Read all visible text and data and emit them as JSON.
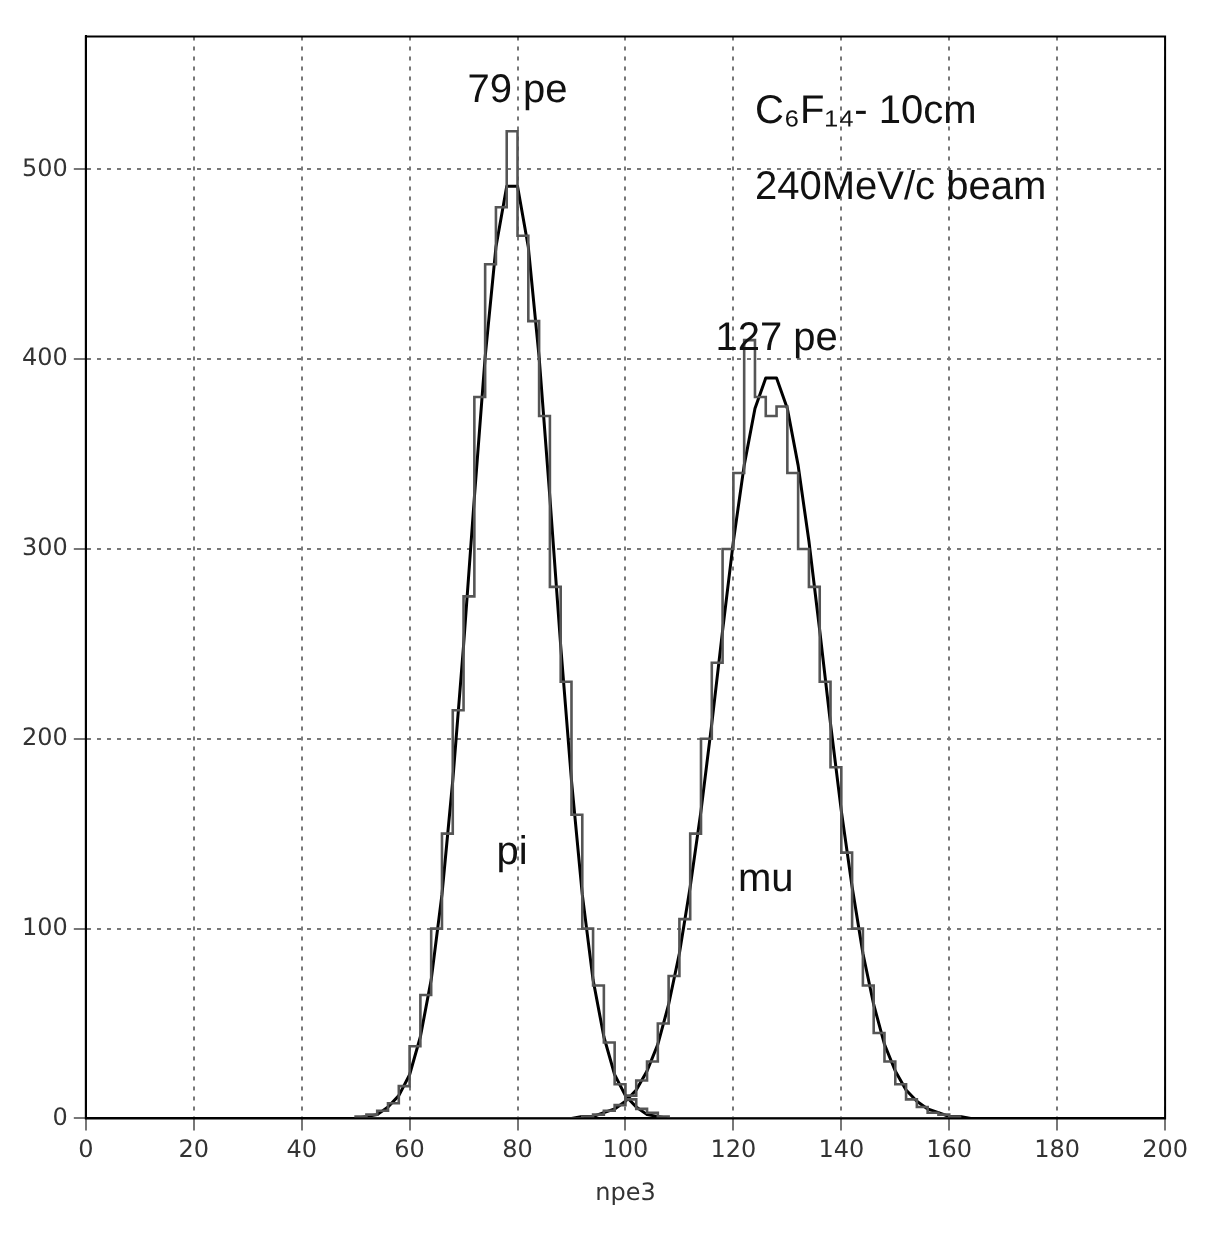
{
  "chart_data": {
    "type": "histogram",
    "xlabel": "npe3",
    "xlim": [
      0,
      200
    ],
    "xticks": [
      0,
      20,
      40,
      60,
      80,
      100,
      120,
      140,
      160,
      180,
      200
    ],
    "ylim": [
      0,
      570
    ],
    "yticks": [
      0,
      100,
      200,
      300,
      400,
      500
    ],
    "grid": true,
    "legend": false,
    "bins": [
      50,
      52,
      54,
      56,
      58,
      60,
      62,
      64,
      66,
      68,
      70,
      72,
      74,
      76,
      78,
      80,
      82,
      84,
      86,
      88,
      90,
      92,
      94,
      96,
      98,
      100,
      102,
      104,
      106,
      108,
      110,
      112,
      114,
      116,
      118,
      120,
      122,
      124,
      126,
      128,
      130,
      132,
      134,
      136,
      138,
      140,
      142,
      144,
      146,
      148,
      150,
      152,
      154,
      156,
      158,
      160,
      162
    ],
    "series": [
      {
        "color": "#555555",
        "values": [
          1,
          2,
          4,
          8,
          17,
          38,
          65,
          100,
          150,
          215,
          275,
          380,
          450,
          480,
          520,
          465,
          420,
          370,
          280,
          230,
          160,
          100,
          70,
          40,
          18,
          10,
          5,
          3,
          1,
          0,
          0,
          0,
          0,
          0,
          0,
          0,
          0,
          0,
          0,
          0,
          0,
          0,
          0,
          0,
          0,
          0,
          0,
          0,
          0,
          0,
          0,
          0,
          0,
          0,
          0,
          0
        ]
      },
      {
        "color": "#555555",
        "values": [
          0,
          0,
          0,
          0,
          0,
          0,
          0,
          0,
          0,
          0,
          0,
          0,
          0,
          0,
          0,
          0,
          0,
          0,
          0,
          0,
          0,
          1,
          2,
          4,
          7,
          12,
          20,
          30,
          50,
          75,
          105,
          150,
          200,
          240,
          300,
          340,
          410,
          380,
          370,
          375,
          340,
          300,
          280,
          230,
          185,
          140,
          100,
          70,
          45,
          30,
          18,
          10,
          6,
          3,
          2,
          1
        ]
      },
      {
        "type": "line",
        "color": "#000000",
        "x": [
          50,
          52,
          54,
          56,
          58,
          60,
          62,
          64,
          66,
          68,
          70,
          72,
          74,
          76,
          78,
          80,
          82,
          84,
          86,
          88,
          90,
          92,
          94,
          96,
          98,
          100,
          102,
          104,
          106,
          108,
          110
        ],
        "values": [
          0,
          1,
          2,
          6,
          12,
          23,
          43,
          73,
          118,
          178,
          249,
          327,
          401,
          459,
          491,
          491,
          459,
          401,
          327,
          249,
          178,
          118,
          73,
          43,
          23,
          12,
          6,
          2,
          1,
          0,
          0
        ]
      },
      {
        "type": "line",
        "color": "#000000",
        "x": [
          90,
          92,
          94,
          96,
          98,
          100,
          102,
          104,
          106,
          108,
          110,
          112,
          114,
          116,
          118,
          120,
          122,
          124,
          126,
          128,
          130,
          132,
          134,
          136,
          138,
          140,
          142,
          144,
          146,
          148,
          150,
          152,
          154,
          156,
          158,
          160,
          162,
          164
        ],
        "values": [
          0,
          1,
          1,
          3,
          5,
          9,
          15,
          25,
          39,
          60,
          87,
          122,
          162,
          208,
          257,
          304,
          344,
          374,
          390,
          390,
          374,
          344,
          304,
          257,
          208,
          162,
          122,
          87,
          60,
          39,
          25,
          15,
          9,
          5,
          3,
          1,
          1,
          0
        ]
      }
    ],
    "annotations": [
      "79 pe",
      "127 pe",
      "pi",
      "mu",
      "C₆F₁₄- 10cm",
      "240MeV/c beam"
    ]
  }
}
